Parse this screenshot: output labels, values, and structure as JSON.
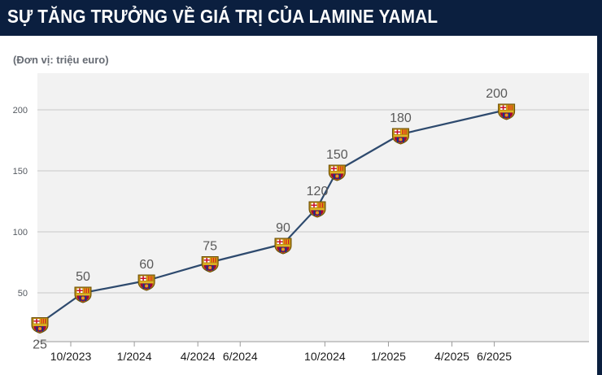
{
  "header": {
    "title": "SỰ TĂNG TRƯỞNG VỀ GIÁ TRỊ CỦA LAMINE YAMAL",
    "unit_label": "(Đơn vị: triệu euro)"
  },
  "colors": {
    "header_bg": "#0b1f3f",
    "plot_bg": "#f2f2f2",
    "line": "#2e4a6e",
    "marker_icon": "fc-barcelona-crest-icon"
  },
  "chart_data": {
    "type": "line",
    "title": "SỰ TĂNG TRƯỞNG VỀ GIÁ TRỊ CỦA LAMINE YAMAL",
    "ylabel": "(Đơn vị: triệu euro)",
    "ylim": [
      10,
      220
    ],
    "yticks": [
      50,
      100,
      150,
      200
    ],
    "grid": true,
    "x_tick_labels": [
      "10/2023",
      "1/2024",
      "4/2024",
      "6/2024",
      "10/2024",
      "1/2025",
      "4/2025",
      "6/2025"
    ],
    "series": [
      {
        "points": [
          {
            "x": "9/2023",
            "y": 25,
            "label": "25"
          },
          {
            "x": "10/2023",
            "y": 50,
            "label": "50"
          },
          {
            "x": "1/2024",
            "y": 60,
            "label": "60"
          },
          {
            "x": "4/2024",
            "y": 75,
            "label": "75"
          },
          {
            "x": "5/2024",
            "y": 90,
            "label": "90"
          },
          {
            "x": "6/2024",
            "y": 120,
            "label": "120"
          },
          {
            "x": "10/2024",
            "y": 150,
            "label": "150"
          },
          {
            "x": "1/2025",
            "y": 180,
            "label": "180"
          },
          {
            "x": "6/2025",
            "y": 200,
            "label": "200"
          }
        ]
      }
    ]
  }
}
